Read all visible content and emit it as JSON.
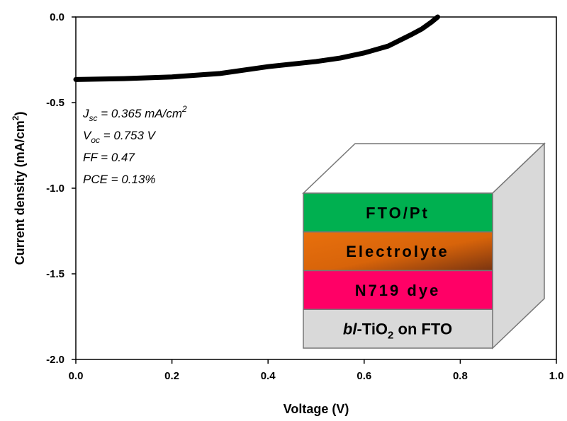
{
  "chart_data": {
    "type": "line",
    "x_label": "Voltage (V)",
    "y_label": {
      "text": "Current density (mA/cm",
      "sup": "2",
      "close": ")"
    },
    "series": [
      {
        "color": "#000000",
        "x": [
          0,
          0.1,
          0.2,
          0.3,
          0.4,
          0.5,
          0.55,
          0.6,
          0.65,
          0.7,
          0.72,
          0.74,
          0.753
        ],
        "values": [
          -0.365,
          -0.36,
          -0.35,
          -0.33,
          -0.29,
          -0.26,
          -0.24,
          -0.21,
          -0.17,
          -0.1,
          -0.07,
          -0.03,
          0
        ]
      }
    ],
    "xlim": [
      0,
      1
    ],
    "ylim": [
      -2,
      0
    ],
    "xticks": [
      {
        "value": 0,
        "label": "0.0"
      },
      0.2,
      0.4,
      0.6,
      0.8,
      {
        "value": 1,
        "label": "1.0"
      }
    ],
    "yticks": [
      {
        "value": 0,
        "label": "0.0"
      },
      -0.5,
      {
        "value": -1,
        "label": "-1.0"
      },
      -1.5,
      {
        "value": -2,
        "label": "-2.0"
      }
    ],
    "annotations": [
      {
        "main": "J",
        "sub": "sc",
        "rest": " = 0.365 mA/cm",
        "sup": "2"
      },
      {
        "main": "V",
        "sub": "oc",
        "rest": " = 0.753 V"
      },
      {
        "main": "FF = 0.47"
      },
      {
        "main": "PCE = 0.13%"
      }
    ]
  },
  "inset": {
    "layers": [
      {
        "text": "FTO/Pt"
      },
      {
        "text": "Electrolyte"
      },
      {
        "text": "N719 dye"
      },
      {
        "italic": "bl",
        "text": "-TiO",
        "sub": "2",
        "rest": " on FTO"
      }
    ]
  }
}
